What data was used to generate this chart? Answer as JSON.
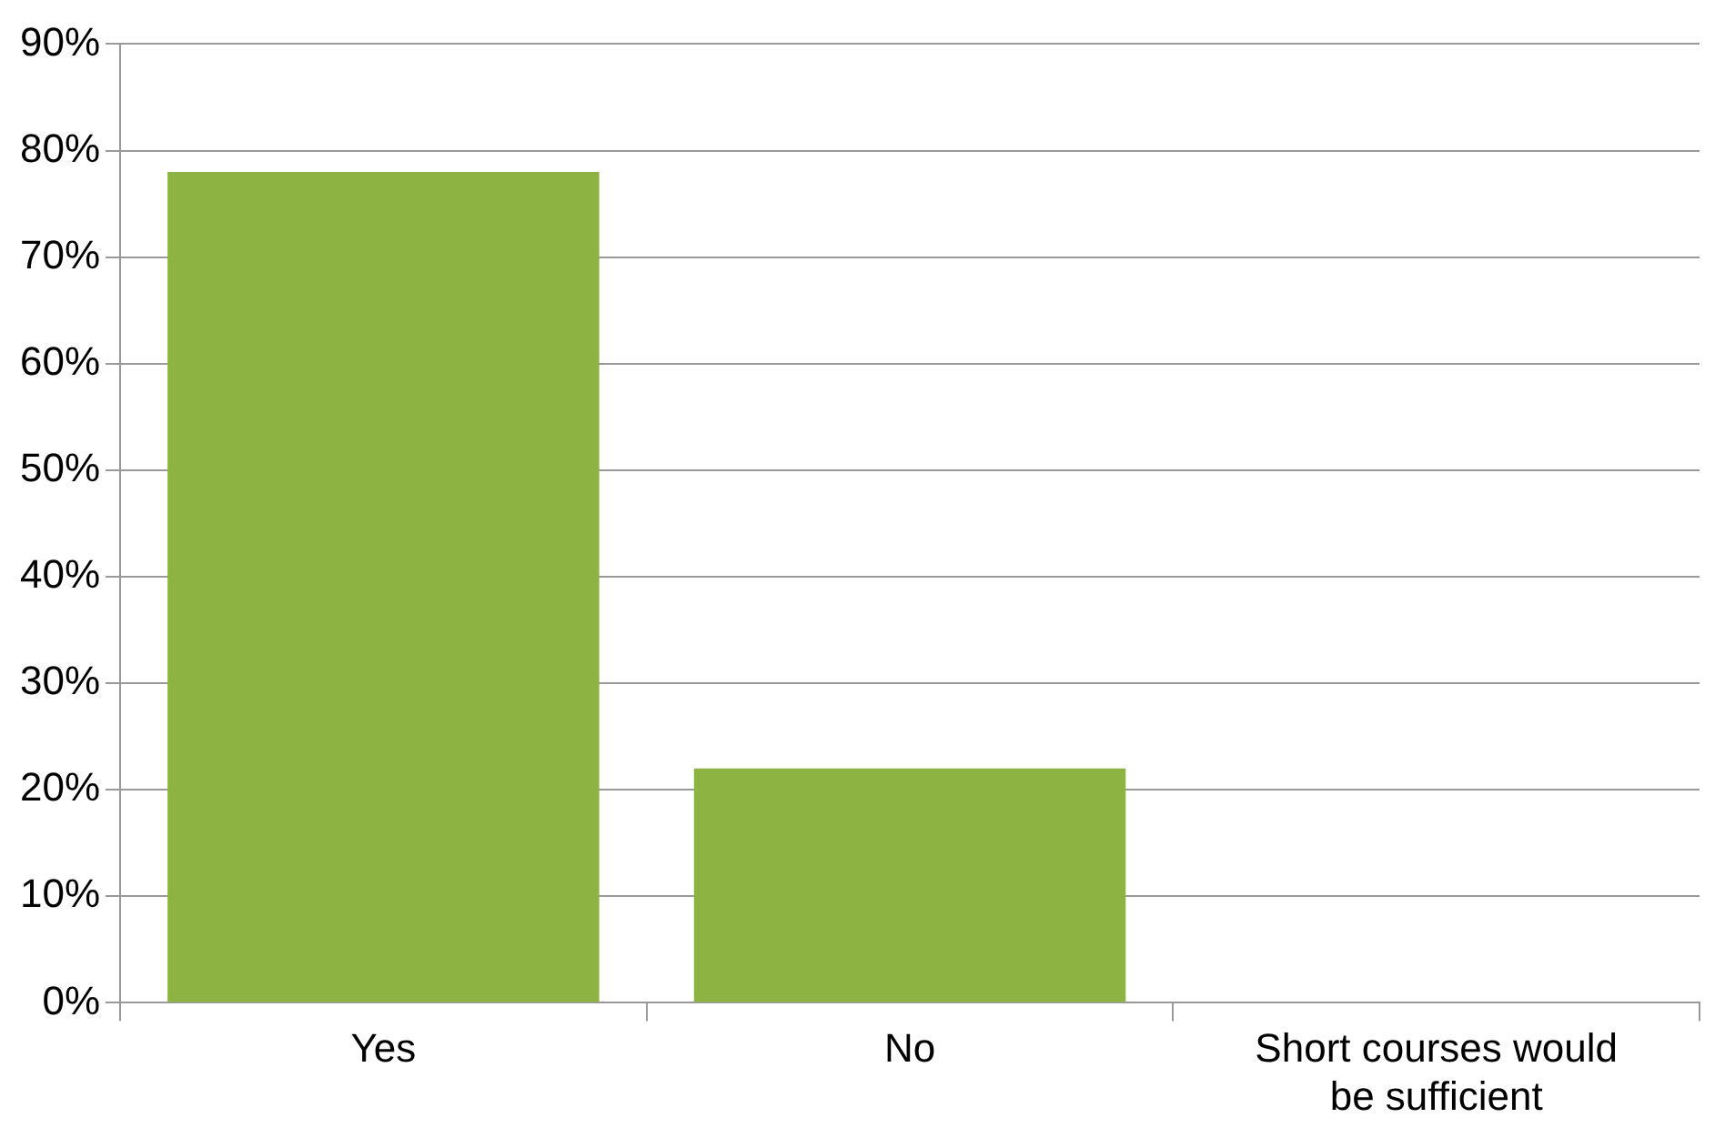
{
  "chart_data": {
    "type": "bar",
    "categories": [
      "Yes",
      "No",
      "Short courses would be sufficient"
    ],
    "values": [
      78,
      22,
      0
    ],
    "color": "#8db443",
    "ylim": [
      0,
      90
    ],
    "yticks": [
      {
        "value": 0,
        "label": "0%"
      },
      {
        "value": 10,
        "label": "10%"
      },
      {
        "value": 20,
        "label": "20%"
      },
      {
        "value": 30,
        "label": "30%"
      },
      {
        "value": 40,
        "label": "40%"
      },
      {
        "value": 50,
        "label": "50%"
      },
      {
        "value": 60,
        "label": "60%"
      },
      {
        "value": 70,
        "label": "70%"
      },
      {
        "value": 80,
        "label": "80%"
      },
      {
        "value": 90,
        "label": "90%"
      }
    ],
    "grid": "y"
  }
}
